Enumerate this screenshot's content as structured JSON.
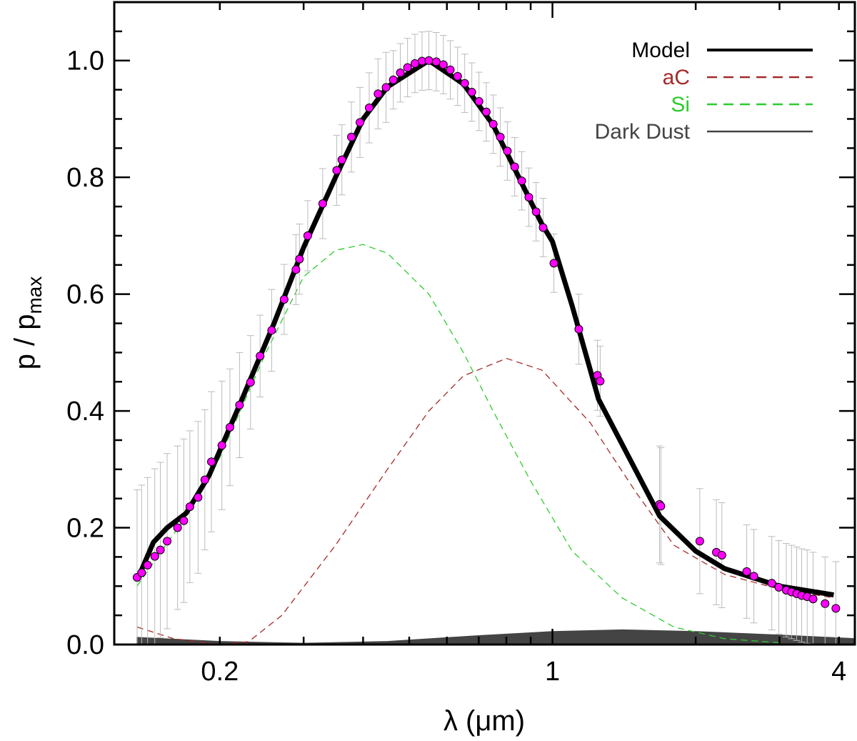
{
  "chart_data": {
    "type": "scatter",
    "title": "",
    "xlabel": "λ (μm)",
    "ylabel_main": "p / p",
    "ylabel_sub": "max",
    "xscale": "log",
    "xlim": [
      0.12,
      4.32
    ],
    "ylim": [
      0.0,
      1.1
    ],
    "xticks": [
      {
        "v": 0.2,
        "label": "0.2"
      },
      {
        "v": 1,
        "label": "1"
      },
      {
        "v": 4,
        "label": "4"
      }
    ],
    "yticks": [
      {
        "v": 0.0,
        "label": "0.0"
      },
      {
        "v": 0.2,
        "label": "0.2"
      },
      {
        "v": 0.4,
        "label": "0.4"
      },
      {
        "v": 0.6,
        "label": "0.6"
      },
      {
        "v": 0.8,
        "label": "0.8"
      },
      {
        "v": 1.0,
        "label": "1.0"
      }
    ],
    "legend_position": "top-right",
    "colors": {
      "points": "#ff00ff",
      "model": "#000000",
      "aC": "#a52a2a",
      "Si": "#2ecc2e",
      "dark": "#444444",
      "errbar": "#bbbbbb"
    },
    "legend": [
      {
        "key": "model",
        "label": "Model"
      },
      {
        "key": "aC",
        "label": "aC"
      },
      {
        "key": "Si",
        "label": "Si"
      },
      {
        "key": "dark",
        "label": "Dark Dust"
      }
    ],
    "observations": {
      "x": [
        0.134,
        0.137,
        0.141,
        0.146,
        0.15,
        0.155,
        0.163,
        0.168,
        0.173,
        0.18,
        0.186,
        0.192,
        0.202,
        0.21,
        0.22,
        0.232,
        0.243,
        0.257,
        0.273,
        0.289,
        0.294,
        0.306,
        0.329,
        0.352,
        0.361,
        0.378,
        0.394,
        0.412,
        0.43,
        0.447,
        0.463,
        0.479,
        0.496,
        0.514,
        0.532,
        0.55,
        0.57,
        0.59,
        0.61,
        0.632,
        0.654,
        0.677,
        0.701,
        0.726,
        0.751,
        0.777,
        0.804,
        0.833,
        0.862,
        0.892,
        0.924,
        0.956,
        1.007,
        1.136,
        1.243,
        1.26,
        1.679,
        1.69,
        2.04,
        2.21,
        2.27,
        2.56,
        2.65,
        2.89,
        2.99,
        3.1,
        3.18,
        3.26,
        3.34,
        3.43,
        3.53,
        3.74,
        3.94
      ],
      "y": [
        0.115,
        0.123,
        0.136,
        0.151,
        0.162,
        0.177,
        0.2,
        0.212,
        0.236,
        0.252,
        0.282,
        0.313,
        0.341,
        0.372,
        0.41,
        0.449,
        0.494,
        0.538,
        0.591,
        0.642,
        0.66,
        0.7,
        0.755,
        0.812,
        0.83,
        0.869,
        0.894,
        0.919,
        0.943,
        0.954,
        0.967,
        0.979,
        0.988,
        0.995,
        0.999,
        1.0,
        0.998,
        0.993,
        0.984,
        0.973,
        0.961,
        0.946,
        0.93,
        0.912,
        0.891,
        0.869,
        0.845,
        0.818,
        0.794,
        0.766,
        0.741,
        0.714,
        0.653,
        0.54,
        0.461,
        0.451,
        0.24,
        0.237,
        0.177,
        0.158,
        0.153,
        0.125,
        0.117,
        0.105,
        0.098,
        0.093,
        0.09,
        0.087,
        0.084,
        0.082,
        0.078,
        0.07,
        0.062
      ],
      "err": [
        0.15,
        0.15,
        0.15,
        0.15,
        0.15,
        0.15,
        0.14,
        0.14,
        0.13,
        0.13,
        0.12,
        0.12,
        0.11,
        0.1,
        0.09,
        0.08,
        0.07,
        0.07,
        0.06,
        0.06,
        0.06,
        0.06,
        0.06,
        0.06,
        0.06,
        0.06,
        0.06,
        0.06,
        0.06,
        0.06,
        0.05,
        0.05,
        0.05,
        0.05,
        0.05,
        0.05,
        0.05,
        0.05,
        0.05,
        0.05,
        0.05,
        0.05,
        0.05,
        0.05,
        0.05,
        0.05,
        0.05,
        0.05,
        0.05,
        0.05,
        0.05,
        0.05,
        0.05,
        0.06,
        0.06,
        0.06,
        0.1,
        0.1,
        0.09,
        0.09,
        0.09,
        0.08,
        0.08,
        0.08,
        0.08,
        0.08,
        0.08,
        0.08,
        0.08,
        0.08,
        0.08,
        0.08,
        0.08
      ]
    },
    "series": [
      {
        "key": "model",
        "name": "Model",
        "style": "solid-thick",
        "x": [
          0.134,
          0.145,
          0.155,
          0.17,
          0.19,
          0.22,
          0.26,
          0.3,
          0.35,
          0.4,
          0.45,
          0.55,
          0.65,
          0.75,
          0.85,
          0.95,
          1.0,
          1.1,
          1.25,
          1.68,
          2.0,
          2.3,
          3.0,
          3.9
        ],
        "y": [
          0.11,
          0.175,
          0.2,
          0.225,
          0.29,
          0.41,
          0.55,
          0.68,
          0.8,
          0.9,
          0.955,
          1.0,
          0.96,
          0.89,
          0.8,
          0.72,
          0.69,
          0.58,
          0.42,
          0.22,
          0.16,
          0.13,
          0.1,
          0.085
        ]
      },
      {
        "key": "aC",
        "name": "aC",
        "style": "dashed",
        "x": [
          0.134,
          0.16,
          0.2,
          0.23,
          0.27,
          0.35,
          0.45,
          0.55,
          0.65,
          0.8,
          0.95,
          1.2,
          1.5,
          1.8,
          2.3,
          3.0,
          3.9
        ],
        "y": [
          0.03,
          0.01,
          0.0,
          0.005,
          0.05,
          0.17,
          0.3,
          0.4,
          0.46,
          0.49,
          0.47,
          0.38,
          0.26,
          0.17,
          0.12,
          0.095,
          0.08
        ]
      },
      {
        "key": "Si",
        "name": "Si",
        "style": "dashed",
        "x": [
          0.134,
          0.17,
          0.2,
          0.25,
          0.3,
          0.35,
          0.4,
          0.45,
          0.55,
          0.65,
          0.75,
          0.9,
          1.1,
          1.4,
          1.8,
          2.3,
          3.0
        ],
        "y": [
          0.1,
          0.22,
          0.32,
          0.5,
          0.63,
          0.675,
          0.685,
          0.67,
          0.6,
          0.5,
          0.4,
          0.28,
          0.16,
          0.08,
          0.03,
          0.01,
          0.003
        ]
      },
      {
        "key": "dark",
        "name": "Dark Dust",
        "style": "filled",
        "x": [
          0.134,
          0.2,
          0.3,
          0.45,
          0.7,
          1.0,
          1.4,
          2.0,
          3.0,
          4.32
        ],
        "y": [
          0.012,
          0.005,
          0.002,
          0.005,
          0.015,
          0.022,
          0.025,
          0.022,
          0.016,
          0.01
        ]
      }
    ]
  }
}
